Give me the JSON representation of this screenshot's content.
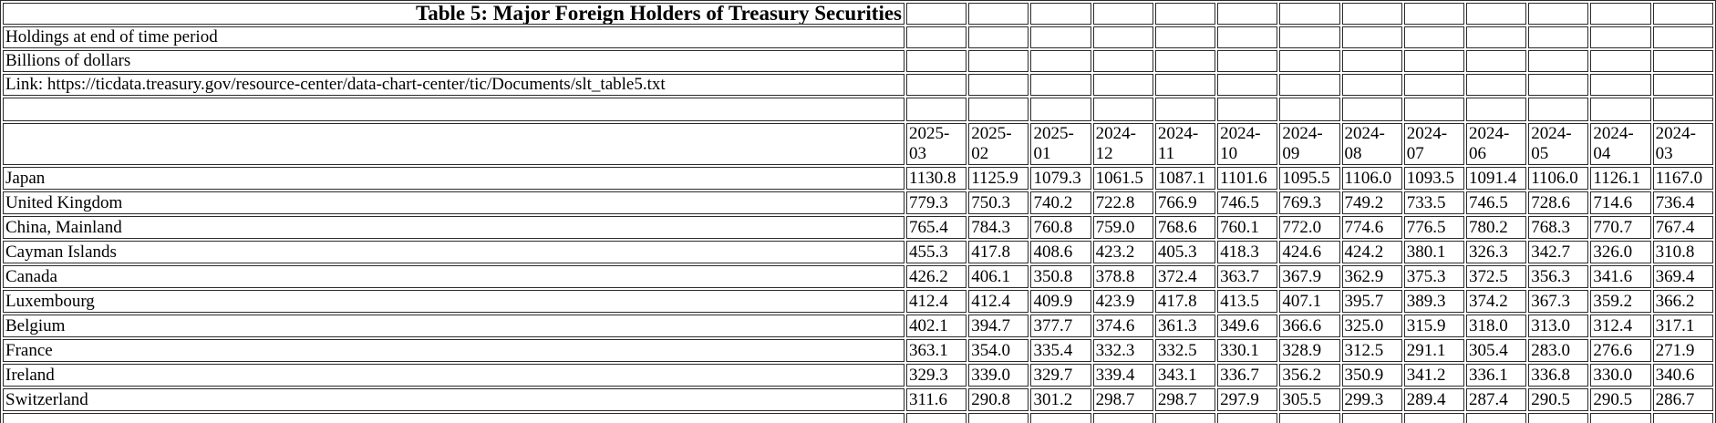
{
  "chart_data": {
    "type": "table",
    "title": "Table 5: Major Foreign Holders of Treasury Securities",
    "notes": [
      "Holdings at end of time period",
      "Billions of dollars",
      "Link: https://ticdata.treasury.gov/resource-center/data-chart-center/tic/Documents/slt_table5.txt"
    ],
    "columns": [
      "2025-03",
      "2025-02",
      "2025-01",
      "2024-12",
      "2024-11",
      "2024-10",
      "2024-09",
      "2024-08",
      "2024-07",
      "2024-06",
      "2024-05",
      "2024-04",
      "2024-03"
    ],
    "rows": [
      {
        "label": "Japan",
        "values": [
          "1130.8",
          "1125.9",
          "1079.3",
          "1061.5",
          "1087.1",
          "1101.6",
          "1095.5",
          "1106.0",
          "1093.5",
          "1091.4",
          "1106.0",
          "1126.1",
          "1167.0"
        ]
      },
      {
        "label": "United Kingdom",
        "values": [
          "779.3",
          "750.3",
          "740.2",
          "722.8",
          "766.9",
          "746.5",
          "769.3",
          "749.2",
          "733.5",
          "746.5",
          "728.6",
          "714.6",
          "736.4"
        ]
      },
      {
        "label": "China, Mainland",
        "values": [
          "765.4",
          "784.3",
          "760.8",
          "759.0",
          "768.6",
          "760.1",
          "772.0",
          "774.6",
          "776.5",
          "780.2",
          "768.3",
          "770.7",
          "767.4"
        ]
      },
      {
        "label": "Cayman Islands",
        "values": [
          "455.3",
          "417.8",
          "408.6",
          "423.2",
          "405.3",
          "418.3",
          "424.6",
          "424.2",
          "380.1",
          "326.3",
          "342.7",
          "326.0",
          "310.8"
        ]
      },
      {
        "label": "Canada",
        "values": [
          "426.2",
          "406.1",
          "350.8",
          "378.8",
          "372.4",
          "363.7",
          "367.9",
          "362.9",
          "375.3",
          "372.5",
          "356.3",
          "341.6",
          "369.4"
        ]
      },
      {
        "label": "Luxembourg",
        "values": [
          "412.4",
          "412.4",
          "409.9",
          "423.9",
          "417.8",
          "413.5",
          "407.1",
          "395.7",
          "389.3",
          "374.2",
          "367.3",
          "359.2",
          "366.2"
        ]
      },
      {
        "label": "Belgium",
        "values": [
          "402.1",
          "394.7",
          "377.7",
          "374.6",
          "361.3",
          "349.6",
          "366.6",
          "325.0",
          "315.9",
          "318.0",
          "313.0",
          "312.4",
          "317.1"
        ]
      },
      {
        "label": "France",
        "values": [
          "363.1",
          "354.0",
          "335.4",
          "332.3",
          "332.5",
          "330.1",
          "328.9",
          "312.5",
          "291.1",
          "305.4",
          "283.0",
          "276.6",
          "271.9"
        ]
      },
      {
        "label": "Ireland",
        "values": [
          "329.3",
          "339.0",
          "329.7",
          "339.4",
          "343.1",
          "336.7",
          "356.2",
          "350.9",
          "341.2",
          "336.1",
          "336.8",
          "330.0",
          "340.6"
        ]
      },
      {
        "label": "Switzerland",
        "values": [
          "311.6",
          "290.8",
          "301.2",
          "298.7",
          "298.7",
          "297.9",
          "305.5",
          "299.3",
          "289.4",
          "287.4",
          "290.5",
          "290.5",
          "286.7"
        ]
      }
    ]
  }
}
